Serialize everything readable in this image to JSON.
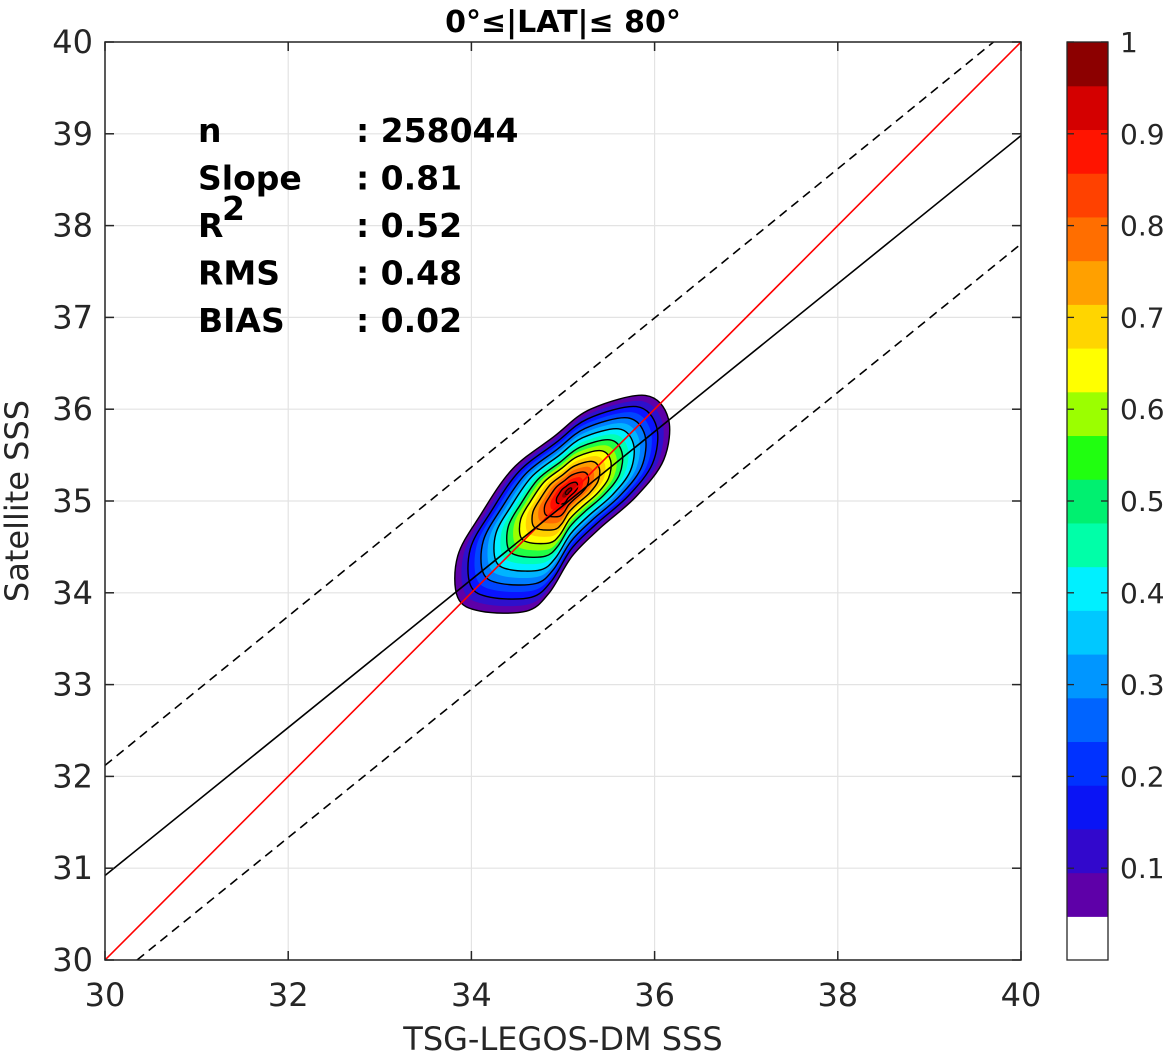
{
  "chart_data": {
    "type": "heatmap",
    "subtype": "filled-contour density scatter",
    "title": "0°≤|LAT|≤ 80°",
    "xlabel": "TSG-LEGOS-DM SSS",
    "ylabel": "Satellite SSS",
    "xlim": [
      30,
      40
    ],
    "ylim": [
      30,
      40
    ],
    "xticks": [
      "30",
      "32",
      "34",
      "36",
      "38",
      "40"
    ],
    "yticks": [
      "30",
      "31",
      "32",
      "33",
      "34",
      "35",
      "36",
      "37",
      "38",
      "39",
      "40"
    ],
    "grid": true,
    "stats": [
      {
        "label": "n",
        "value": ": 258044"
      },
      {
        "label": "Slope",
        "value": ": 0.81"
      },
      {
        "label": "R",
        "sup": "2",
        "value": ": 0.52"
      },
      {
        "label": "RMS",
        "value": ": 0.48"
      },
      {
        "label": "BIAS",
        "value": ": 0.02"
      }
    ],
    "lines": [
      {
        "name": "one-to-one",
        "style": "solid",
        "color": "#ff0000",
        "points": [
          [
            30,
            30
          ],
          [
            40,
            40
          ]
        ]
      },
      {
        "name": "regression",
        "style": "solid",
        "color": "#000000",
        "points": [
          [
            30,
            30.92
          ],
          [
            40,
            38.98
          ]
        ]
      },
      {
        "name": "upper-bound",
        "style": "dashed",
        "color": "#000000",
        "points": [
          [
            30,
            32.12
          ],
          [
            39.7,
            40
          ]
        ]
      },
      {
        "name": "lower-bound",
        "style": "dashed",
        "color": "#000000",
        "points": [
          [
            30.35,
            30
          ],
          [
            40,
            37.8
          ]
        ]
      }
    ],
    "density": {
      "center": [
        35.0,
        35.05
      ],
      "levels": [
        0.05,
        0.1,
        0.2,
        0.3,
        0.4,
        0.5,
        0.6,
        0.7,
        0.8,
        0.9,
        0.95
      ],
      "outer_contour": [
        [
          33.85,
          34.4
        ],
        [
          34.1,
          34.85
        ],
        [
          34.45,
          35.35
        ],
        [
          34.9,
          35.7
        ],
        [
          35.3,
          36.0
        ],
        [
          35.9,
          36.15
        ],
        [
          36.15,
          35.9
        ],
        [
          36.1,
          35.45
        ],
        [
          35.8,
          35.05
        ],
        [
          35.4,
          34.7
        ],
        [
          35.1,
          34.4
        ],
        [
          34.85,
          34.0
        ],
        [
          34.6,
          33.8
        ],
        [
          34.1,
          33.8
        ],
        [
          33.85,
          33.95
        ]
      ],
      "fill_colors": [
        "#5e00a8",
        "#2e10cc",
        "#0a14ff",
        "#0046ff",
        "#007dff",
        "#00b4ff",
        "#00f0ff",
        "#00ffb4",
        "#20ff45",
        "#9bff00",
        "#ffff00",
        "#ffcf00",
        "#ff9e00",
        "#ff6a00",
        "#ff3d00",
        "#ff0d00",
        "#d40000",
        "#8c0000"
      ]
    },
    "colorbar": {
      "ticks": [
        "0.1",
        "0.2",
        "0.3",
        "0.4",
        "0.5",
        "0.6",
        "0.7",
        "0.8",
        "0.9",
        "1"
      ],
      "range": [
        0,
        1
      ],
      "colors": [
        "#ffffff",
        "#5e00a8",
        "#3208cc",
        "#0a14f5",
        "#0032ff",
        "#0064ff",
        "#0096ff",
        "#00c8ff",
        "#00f0ff",
        "#00ffa8",
        "#00f070",
        "#20ff10",
        "#9bff00",
        "#ffff00",
        "#ffd500",
        "#ffa000",
        "#ff6e00",
        "#ff4100",
        "#ff1400",
        "#d40000",
        "#8c0000"
      ]
    }
  }
}
